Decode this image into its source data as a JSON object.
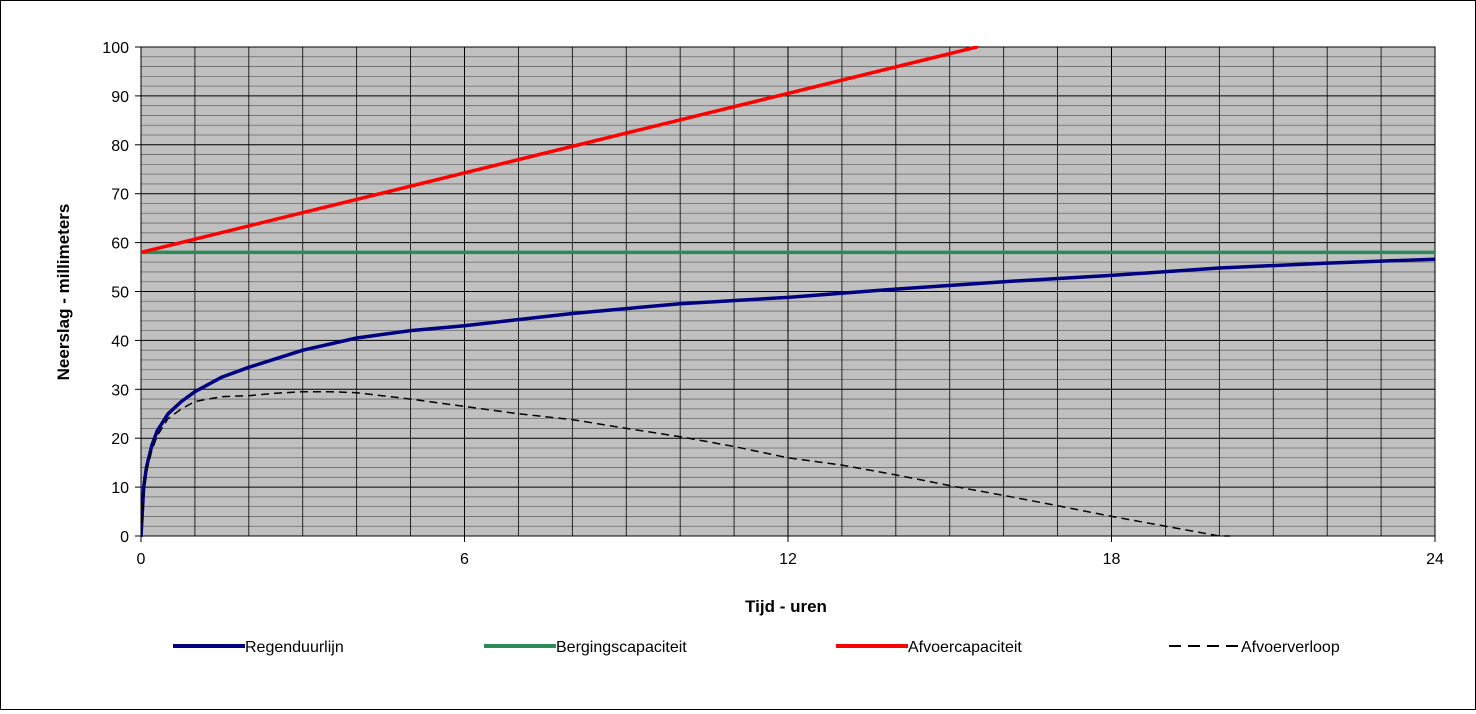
{
  "chart_data": {
    "type": "line",
    "title": "",
    "xlabel": "Tijd - uren",
    "ylabel": "Neerslag - millimeters",
    "xlim": [
      0,
      24
    ],
    "ylim": [
      0,
      100
    ],
    "xticks": [
      "0",
      "6",
      "12",
      "18",
      "24"
    ],
    "yticks": [
      "0",
      "10",
      "20",
      "30",
      "40",
      "50",
      "60",
      "70",
      "80",
      "90",
      "100"
    ],
    "grid": true,
    "legend_position": "bottom",
    "plot_background": "#c0c0c0",
    "series": [
      {
        "name": "Regenduurlijn",
        "color": "#000080",
        "style": "solid",
        "x": [
          0,
          0.05,
          0.1,
          0.2,
          0.3,
          0.5,
          0.75,
          1,
          1.5,
          2,
          3,
          4,
          5,
          6,
          8,
          10,
          12,
          14,
          16,
          18,
          20,
          22,
          24
        ],
        "y": [
          0,
          10,
          14,
          18.5,
          21.5,
          25,
          27.5,
          29.5,
          32.5,
          34.5,
          38,
          40.5,
          42,
          43,
          45.5,
          47.5,
          48.8,
          50.5,
          52,
          53.3,
          54.8,
          55.8,
          56.6
        ]
      },
      {
        "name": "Bergingscapaciteit",
        "color": "#2e8b57",
        "style": "solid",
        "x": [
          0,
          24
        ],
        "y": [
          58,
          58
        ]
      },
      {
        "name": "Afvoercapaciteit",
        "color": "#ff0000",
        "style": "solid",
        "x": [
          0,
          15.5
        ],
        "y": [
          58,
          100
        ]
      },
      {
        "name": "Afvoerverloop",
        "color": "#000000",
        "style": "dashed",
        "x": [
          0,
          0.05,
          0.1,
          0.2,
          0.3,
          0.5,
          0.75,
          1,
          1.5,
          2,
          2.5,
          3,
          3.5,
          4,
          5,
          6,
          7,
          8,
          9,
          10,
          11,
          12,
          13,
          14,
          15,
          16,
          17,
          18,
          19,
          20,
          20.2
        ],
        "y": [
          0,
          9,
          13,
          17.5,
          20.5,
          24,
          26,
          27.5,
          28.5,
          28.7,
          29.2,
          29.5,
          29.5,
          29.3,
          28,
          26.5,
          25,
          23.8,
          22,
          20.3,
          18.3,
          16,
          14.5,
          12.5,
          10.3,
          8.3,
          6.2,
          4,
          2,
          0,
          0
        ]
      }
    ]
  }
}
